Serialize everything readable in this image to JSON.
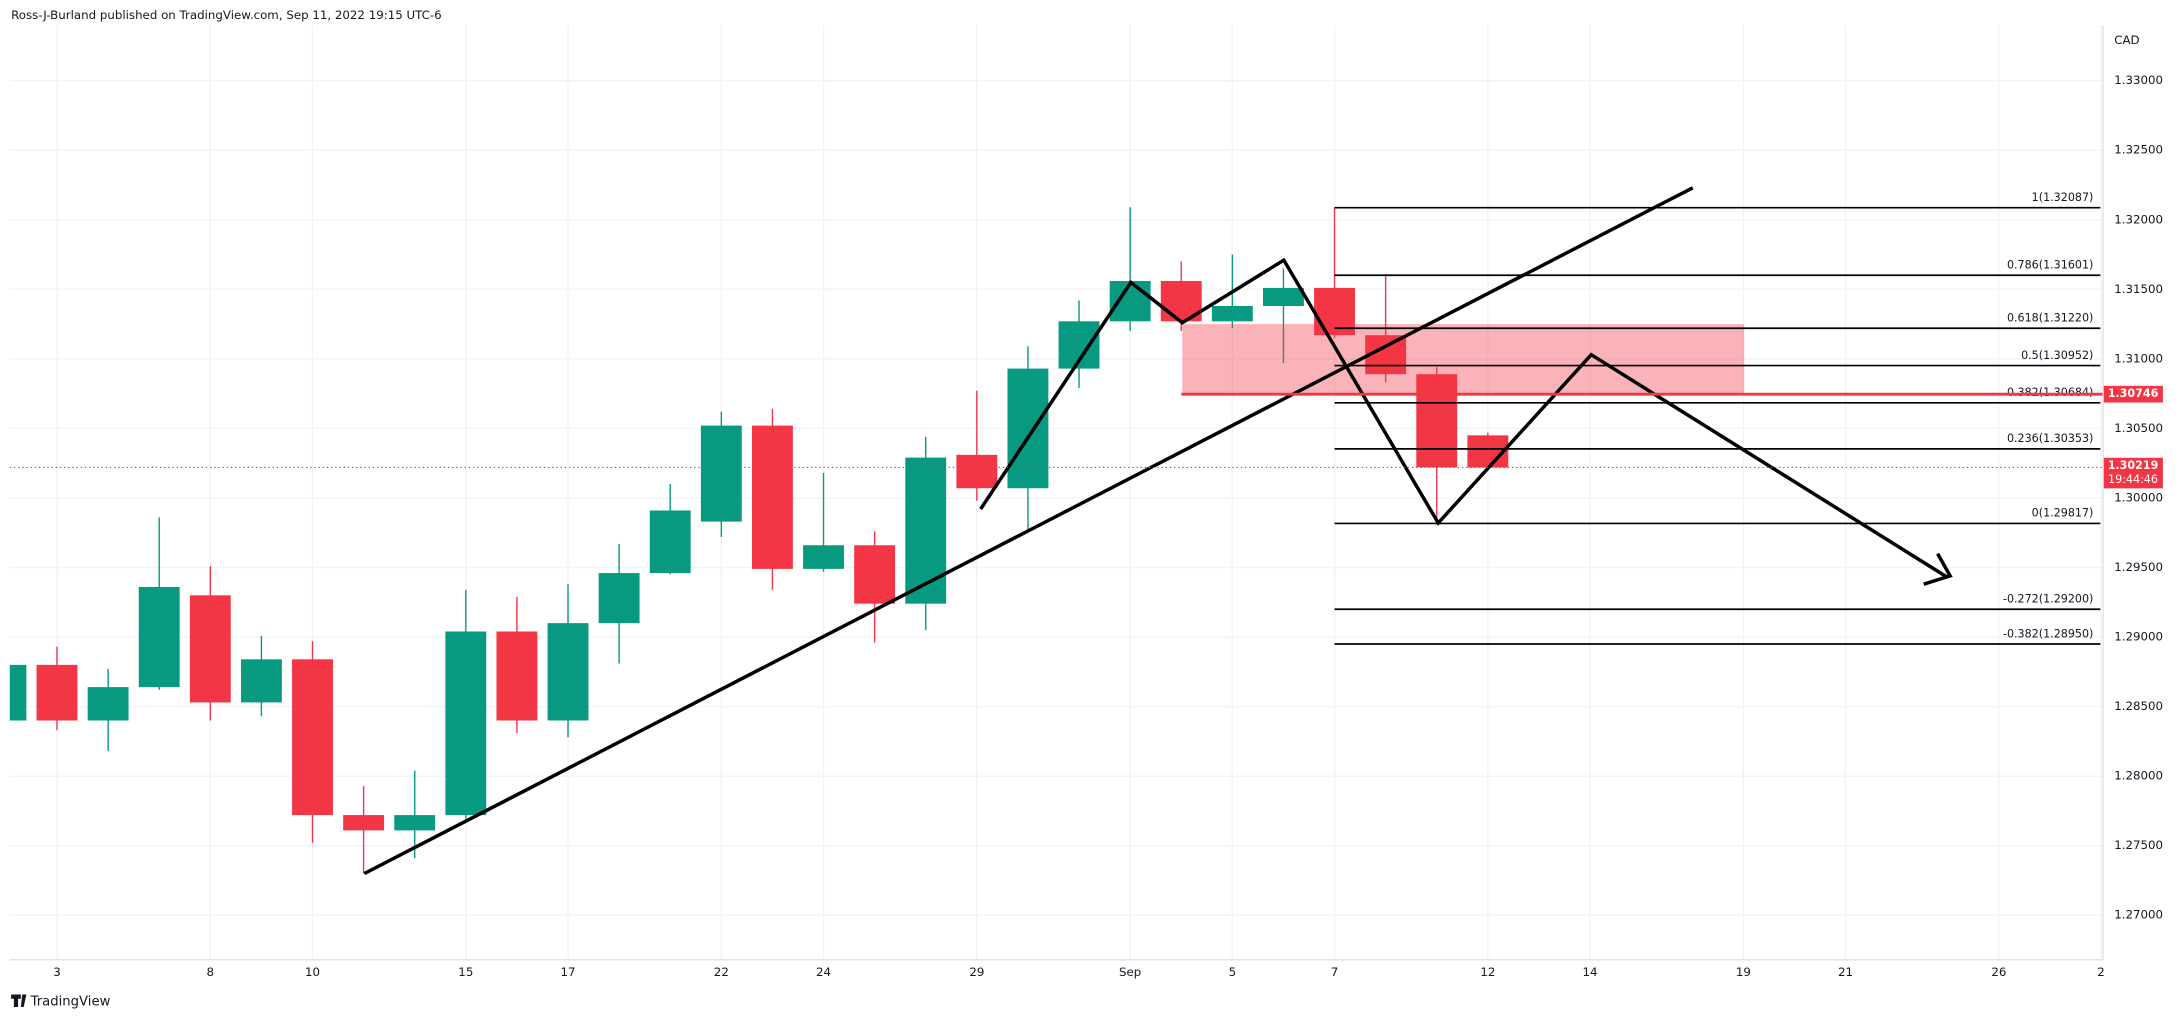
{
  "header": {
    "title": "Ross-J-Burland published on TradingView.com, Sep 11, 2022 19:15 UTC-6"
  },
  "footer": {
    "brand": "TradingView"
  },
  "chart_data": {
    "type": "candlestick",
    "currency": "CAD",
    "up_color": "#089981",
    "down_color": "#f23645",
    "grid": true,
    "xlim": [
      0.075,
      41.04
    ],
    "ylim": [
      1.2668,
      1.334
    ],
    "xticks": [
      {
        "value": 1,
        "label": "3"
      },
      {
        "value": 4,
        "label": "8"
      },
      {
        "value": 6,
        "label": "10"
      },
      {
        "value": 9,
        "label": "15"
      },
      {
        "value": 11,
        "label": "17"
      },
      {
        "value": 14,
        "label": "22"
      },
      {
        "value": 16,
        "label": "24"
      },
      {
        "value": 19,
        "label": "29"
      },
      {
        "value": 22,
        "label": "Sep"
      },
      {
        "value": 24,
        "label": "5"
      },
      {
        "value": 26,
        "label": "7"
      },
      {
        "value": 29,
        "label": "12"
      },
      {
        "value": 31,
        "label": "14"
      },
      {
        "value": 34,
        "label": "19"
      },
      {
        "value": 36,
        "label": "21"
      },
      {
        "value": 39,
        "label": "26"
      },
      {
        "value": 41,
        "label": "2"
      }
    ],
    "yticks": [
      {
        "value": 1.27,
        "label": "1.27000"
      },
      {
        "value": 1.275,
        "label": "1.27500"
      },
      {
        "value": 1.28,
        "label": "1.28000"
      },
      {
        "value": 1.285,
        "label": "1.28500"
      },
      {
        "value": 1.29,
        "label": "1.29000"
      },
      {
        "value": 1.295,
        "label": "1.29500"
      },
      {
        "value": 1.3,
        "label": "1.30000"
      },
      {
        "value": 1.305,
        "label": "1.30500"
      },
      {
        "value": 1.31,
        "label": "1.31000"
      },
      {
        "value": 1.315,
        "label": "1.31500"
      },
      {
        "value": 1.32,
        "label": "1.32000"
      },
      {
        "value": 1.325,
        "label": "1.32500"
      },
      {
        "value": 1.33,
        "label": "1.33000"
      }
    ],
    "open": [
      1.284,
      1.288,
      1.284,
      1.2864,
      1.293,
      1.2853,
      1.2884,
      1.2772,
      1.2761,
      1.2772,
      1.2904,
      1.284,
      1.291,
      1.2946,
      1.2983,
      1.3052,
      1.2949,
      1.2966,
      1.2924,
      1.3031,
      1.3007,
      1.3093,
      1.3127,
      1.3156,
      1.3127,
      1.3138,
      1.3151,
      1.3117,
      1.3089,
      1.3045
    ],
    "high": [
      1.2885,
      1.2893,
      1.2877,
      1.2986,
      1.2951,
      1.2901,
      1.2897,
      1.2793,
      1.2804,
      1.2934,
      1.2929,
      1.2938,
      1.2967,
      1.301,
      1.3062,
      1.3064,
      1.3018,
      1.2976,
      1.3044,
      1.3077,
      1.3109,
      1.3142,
      1.3209,
      1.317,
      1.3175,
      1.3165,
      1.32087,
      1.3161,
      1.3094,
      1.3047
    ],
    "low": [
      1.2838,
      1.2833,
      1.2818,
      1.2862,
      1.284,
      1.2843,
      1.2752,
      1.273,
      1.2741,
      1.2769,
      1.2831,
      1.2828,
      1.2881,
      1.2945,
      1.2972,
      1.2934,
      1.2947,
      1.2896,
      1.2905,
      1.2998,
      1.2976,
      1.3079,
      1.312,
      1.312,
      1.3122,
      1.3097,
      1.3115,
      1.3083,
      1.29817,
      1.302
    ],
    "close": [
      1.288,
      1.284,
      1.2864,
      1.2936,
      1.2853,
      1.2884,
      1.2772,
      1.2761,
      1.2772,
      1.2904,
      1.284,
      1.291,
      1.2946,
      1.2991,
      1.3052,
      1.2949,
      1.2966,
      1.2924,
      1.3029,
      1.3007,
      1.3093,
      1.3127,
      1.3156,
      1.3127,
      1.3138,
      1.3151,
      1.3117,
      1.3089,
      1.3022,
      1.30219
    ],
    "fib_levels": [
      {
        "value": 1.32087,
        "label": "1(1.32087)"
      },
      {
        "value": 1.31601,
        "label": "0.786(1.31601)"
      },
      {
        "value": 1.3122,
        "label": "0.618(1.31220)"
      },
      {
        "value": 1.30952,
        "label": "0.5(1.30952)"
      },
      {
        "value": 1.30684,
        "label": "0.382(1.30684)"
      },
      {
        "value": 1.30353,
        "label": "0.236(1.30353)"
      },
      {
        "value": 1.29817,
        "label": "0(1.29817)"
      },
      {
        "value": 1.292,
        "label": "-0.272(1.29200)"
      },
      {
        "value": 1.2895,
        "label": "-0.382(1.28950)"
      }
    ],
    "level_tag": {
      "value": 1.30746,
      "label": "1.30746"
    },
    "last_price": {
      "value": 1.30219,
      "label": "1.30219",
      "countdown": "19:44:46"
    }
  }
}
